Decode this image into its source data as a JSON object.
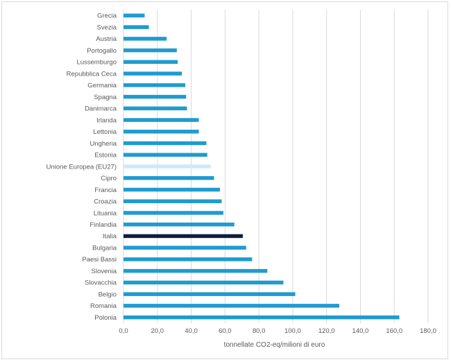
{
  "chart_data": {
    "type": "bar",
    "orientation": "horizontal",
    "title": "",
    "xlabel": "tonnellate CO2-eq/milioni di euro",
    "ylabel": "",
    "xlim": [
      0,
      180
    ],
    "xticks": [
      "0,0",
      "20,0",
      "40,0",
      "60,0",
      "80,0",
      "100,0",
      "120,0",
      "140,0",
      "160,0",
      "180,0"
    ],
    "grid": "vertical",
    "legend": "none",
    "colors": {
      "default": "#1f9bd0",
      "eu": "#cde9f7",
      "italy": "#0b1f3f"
    },
    "categories": [
      "Grecia",
      "Svezia",
      "Austria",
      "Portogallo",
      "Lussemburgo",
      "Repubblica Ceca",
      "Germania",
      "Spagna",
      "Danimarca",
      "Irlanda",
      "Lettonia",
      "Ungheria",
      "Estonia",
      "Unione Europea (EU27)",
      "Cipro",
      "Francia",
      "Croazia",
      "Lituania",
      "Finlandia",
      "Italia",
      "Bulgaria",
      "Paesi Bassi",
      "Slovenia",
      "Slovacchia",
      "Belgio",
      "Romania",
      "Polonia"
    ],
    "values": [
      12.5,
      15.0,
      25.5,
      31.5,
      32.0,
      34.5,
      36.5,
      37.0,
      37.5,
      44.5,
      44.5,
      49.0,
      49.5,
      51.5,
      53.5,
      57.0,
      58.0,
      59.0,
      65.5,
      70.5,
      72.5,
      76.0,
      85.0,
      94.5,
      101.5,
      127.5,
      163.0
    ],
    "highlight": {
      "Unione Europea (EU27)": "eu",
      "Italia": "italy"
    }
  }
}
